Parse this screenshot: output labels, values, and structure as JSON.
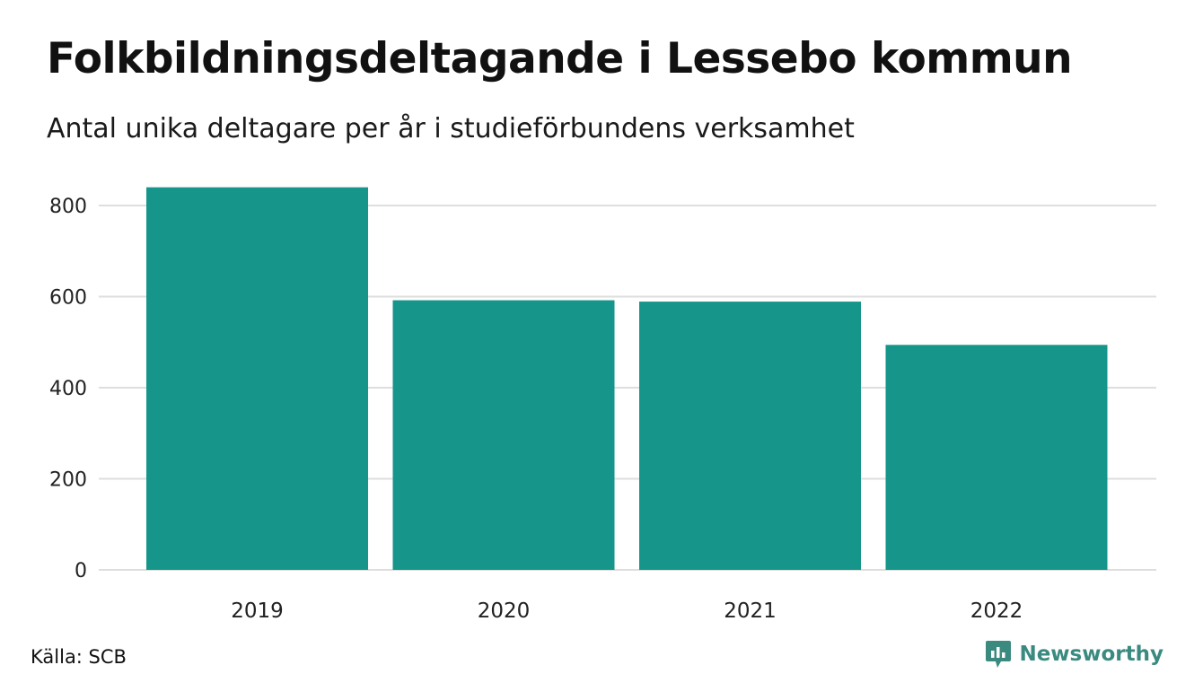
{
  "header": {
    "title": "Folkbildningsdeltagande i Lessebo kommun",
    "subtitle": "Antal unika deltagare per år i studieförbundens verksamhet"
  },
  "footer": {
    "source": "Källa: SCB",
    "brand": "Newsworthy",
    "brand_icon": "bar-chart-speech-bubble-icon"
  },
  "colors": {
    "bar": "#16968a",
    "grid": "#dedede",
    "brand": "#3a8a80"
  },
  "chart_data": {
    "type": "bar",
    "categories": [
      "2019",
      "2020",
      "2021",
      "2022"
    ],
    "values": [
      840,
      592,
      589,
      494
    ],
    "ylim": [
      0,
      800
    ],
    "yticks": [
      0,
      200,
      400,
      600,
      800
    ],
    "xlabel": "",
    "ylabel": "",
    "grid": true,
    "legend": "none"
  }
}
